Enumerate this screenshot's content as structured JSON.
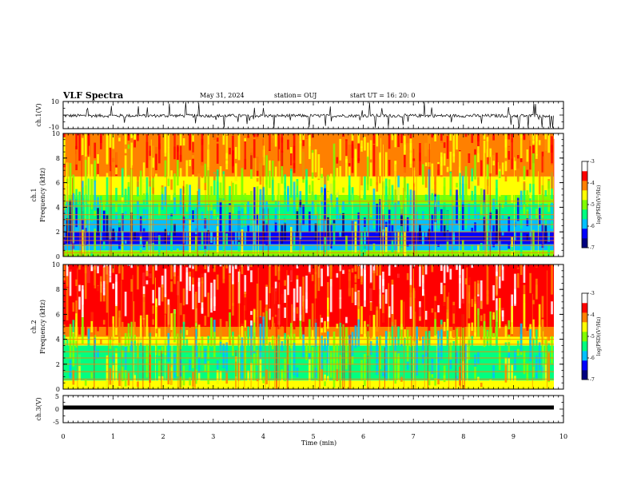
{
  "header": {
    "title": "VLF Spectra",
    "date": "May 31, 2024",
    "station": "station= OUJ",
    "start": "start  UT =   16: 20: 0"
  },
  "chart_data": [
    {
      "type": "line",
      "name": "ch1-waveform",
      "ylabel": "ch.1(V)",
      "ylim": [
        -10,
        10
      ],
      "y_ticks": [
        "10",
        "-10"
      ],
      "baseline": -0.5,
      "noise_amplitude": 1.2,
      "spikes": "frequent up to +/-10"
    },
    {
      "type": "heatmap",
      "name": "ch1-spectrogram",
      "ylabel": [
        "ch.1",
        "Frequency  (kHz)"
      ],
      "xlim": [
        0,
        9.8
      ],
      "ylim": [
        0,
        10
      ],
      "y_ticks": [
        "0",
        "2",
        "4",
        "6",
        "8",
        "10"
      ],
      "colorbar": {
        "label": "log(PSD)(V²/Hz)",
        "range": [
          -7,
          -3
        ],
        "ticks": [
          "-3",
          "-4",
          "-5",
          "-6",
          "-7"
        ]
      },
      "colors": [
        "#000080",
        "#0000ff",
        "#00c0ff",
        "#00ff80",
        "#80ff00",
        "#ffff00",
        "#ff8000",
        "#ff0000",
        "#ffffff"
      ],
      "bands": [
        {
          "f0": 0,
          "f1": 0.5,
          "level": 4
        },
        {
          "f0": 0.5,
          "f1": 1.0,
          "level": 2
        },
        {
          "f0": 1.0,
          "f1": 2.0,
          "level": 1
        },
        {
          "f0": 2.0,
          "f1": 3.0,
          "level": 2
        },
        {
          "f0": 3.0,
          "f1": 4.3,
          "level": 3
        },
        {
          "f0": 4.3,
          "f1": 5.0,
          "level": 4
        },
        {
          "f0": 5.0,
          "f1": 6.5,
          "level": 5
        },
        {
          "f0": 6.5,
          "f1": 10,
          "level": 6
        }
      ],
      "lines_khz": [
        0.3,
        0.9,
        1.3,
        1.6,
        2.0,
        2.6,
        3.0,
        3.4,
        4.1,
        4.5
      ]
    },
    {
      "type": "heatmap",
      "name": "ch2-spectrogram",
      "ylabel": [
        "ch.2",
        "Frequency  (kHz)"
      ],
      "xlim": [
        0,
        9.8
      ],
      "ylim": [
        0,
        10
      ],
      "y_ticks": [
        "0",
        "2",
        "4",
        "6",
        "8",
        "10"
      ],
      "colorbar": {
        "label": "log(PSD)(V²/Hz)",
        "range": [
          -7,
          -3
        ],
        "ticks": [
          "-3",
          "-4",
          "-5",
          "-6",
          "-7"
        ]
      },
      "colors": [
        "#000080",
        "#0000ff",
        "#00c0ff",
        "#00ff80",
        "#80ff00",
        "#ffff00",
        "#ff8000",
        "#ff0000",
        "#ffffff"
      ],
      "bands": [
        {
          "f0": 0,
          "f1": 0.7,
          "level": 5
        },
        {
          "f0": 0.7,
          "f1": 2.0,
          "level": 3
        },
        {
          "f0": 2.0,
          "f1": 3.5,
          "level": 3
        },
        {
          "f0": 3.5,
          "f1": 4.2,
          "level": 5
        },
        {
          "f0": 4.2,
          "f1": 5.0,
          "level": 6
        },
        {
          "f0": 5.0,
          "f1": 10,
          "level": 7
        }
      ],
      "lines_khz": [
        0.8,
        1.4,
        2.0,
        2.5,
        3.0,
        3.6,
        4.0
      ]
    },
    {
      "type": "line",
      "name": "ch3-waveform",
      "ylabel": "ch.3(V)",
      "ylim": [
        -5,
        5
      ],
      "y_ticks": [
        "5",
        "0",
        "-5"
      ],
      "baseline": 0.6
    }
  ],
  "xaxis": {
    "label": "Time  (min)",
    "ticks": [
      "0",
      "1",
      "2",
      "3",
      "4",
      "5",
      "6",
      "7",
      "8",
      "9",
      "10"
    ],
    "range": [
      0,
      10
    ]
  }
}
